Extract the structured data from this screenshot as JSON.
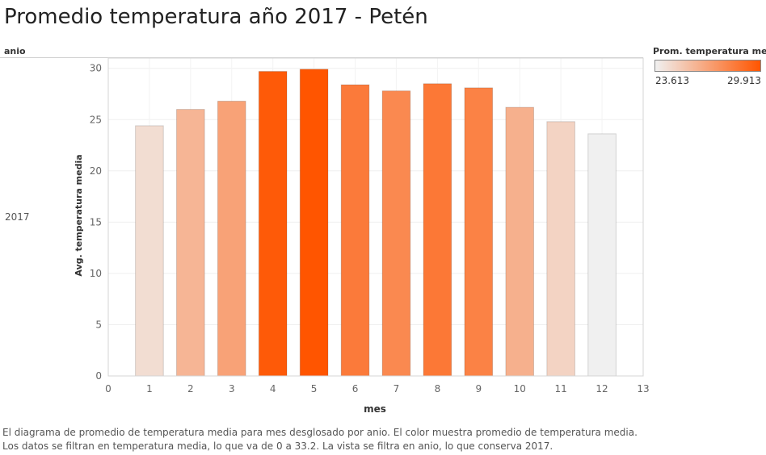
{
  "title": "Promedio temperatura año 2017 - Petén",
  "row_header": "anio",
  "row_value": "2017",
  "legend": {
    "title": "Prom. temperatura me..",
    "min_label": "23.613",
    "max_label": "29.913",
    "min_value": 23.613,
    "max_value": 29.913,
    "color_low": "#f0f0f0",
    "color_high": "#ff5500"
  },
  "caption": "El diagrama de promedio de temperatura media para mes desglosado por anio.  El color muestra promedio de temperatura media. Los datos se filtran en temperatura media, lo que va de 0 a 33.2. La vista se filtra en anio, lo que conserva 2017.",
  "chart_data": {
    "type": "bar",
    "xlabel": "mes",
    "ylabel": "Avg. temperatura media",
    "x": [
      1,
      2,
      3,
      4,
      5,
      6,
      7,
      8,
      9,
      10,
      11,
      12
    ],
    "values": [
      24.4,
      26.0,
      26.8,
      29.7,
      29.913,
      28.4,
      27.8,
      28.5,
      28.1,
      26.2,
      24.8,
      23.613
    ],
    "xlim": [
      0,
      13
    ],
    "ylim": [
      0,
      31
    ],
    "x_ticks": [
      0,
      1,
      2,
      3,
      4,
      5,
      6,
      7,
      8,
      9,
      10,
      11,
      12,
      13
    ],
    "y_ticks": [
      0,
      5,
      10,
      15,
      20,
      25,
      30
    ],
    "grid": true
  }
}
